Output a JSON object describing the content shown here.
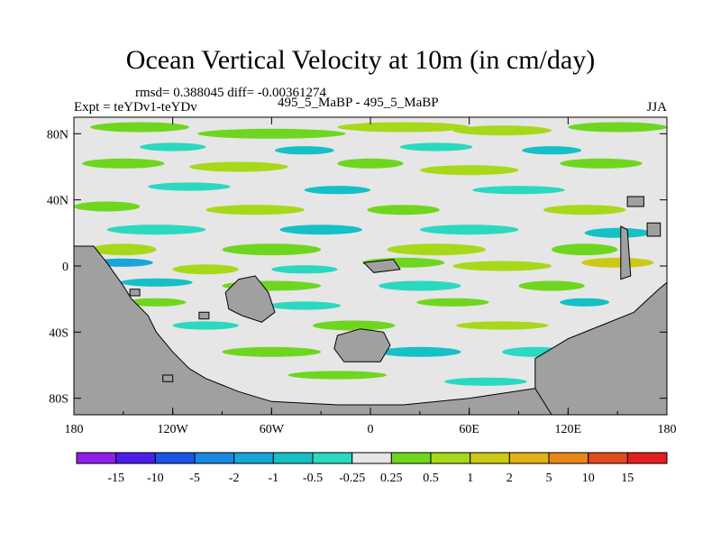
{
  "chart_data": {
    "type": "heatmap",
    "title": "Ocean Vertical Velocity at 10m (in cm/day)",
    "stats_text": "rmsd= 0.388045 diff= -0.00361274",
    "experiment_label": "Expt = teYDv1-teYDv",
    "case_label": "495_5_MaBP - 495_5_MaBP",
    "season": "JJA",
    "xlabel": "",
    "ylabel": "",
    "x_ticks": [
      {
        "value": -180,
        "label": "180"
      },
      {
        "value": -120,
        "label": "120W"
      },
      {
        "value": -60,
        "label": "60W"
      },
      {
        "value": 0,
        "label": "0"
      },
      {
        "value": 60,
        "label": "60E"
      },
      {
        "value": 120,
        "label": "120E"
      },
      {
        "value": 180,
        "label": "180"
      }
    ],
    "y_ticks": [
      {
        "value": 80,
        "label": "80N"
      },
      {
        "value": 40,
        "label": "40N"
      },
      {
        "value": 0,
        "label": "0"
      },
      {
        "value": -40,
        "label": "40S"
      },
      {
        "value": -80,
        "label": "80S"
      }
    ],
    "xlim": [
      -180,
      180
    ],
    "ylim": [
      -90,
      90
    ],
    "colorbar": {
      "levels": [
        "-15",
        "-10",
        "-5",
        "-2",
        "-1",
        "-0.5",
        "-0.25",
        "0.25",
        "0.5",
        "1",
        "2",
        "5",
        "10",
        "15"
      ],
      "colors": [
        "#8f1fe8",
        "#4a1de8",
        "#1a55e6",
        "#1787e0",
        "#17a6d8",
        "#15c0c6",
        "#2bd8c0",
        "#e6e6e6",
        "#6ed61f",
        "#a8d81a",
        "#cbc915",
        "#e3b214",
        "#e8861a",
        "#e34a1c",
        "#e21f1f"
      ]
    },
    "background_color": "#e6e6e6",
    "land_color": "#a0a0a0"
  }
}
